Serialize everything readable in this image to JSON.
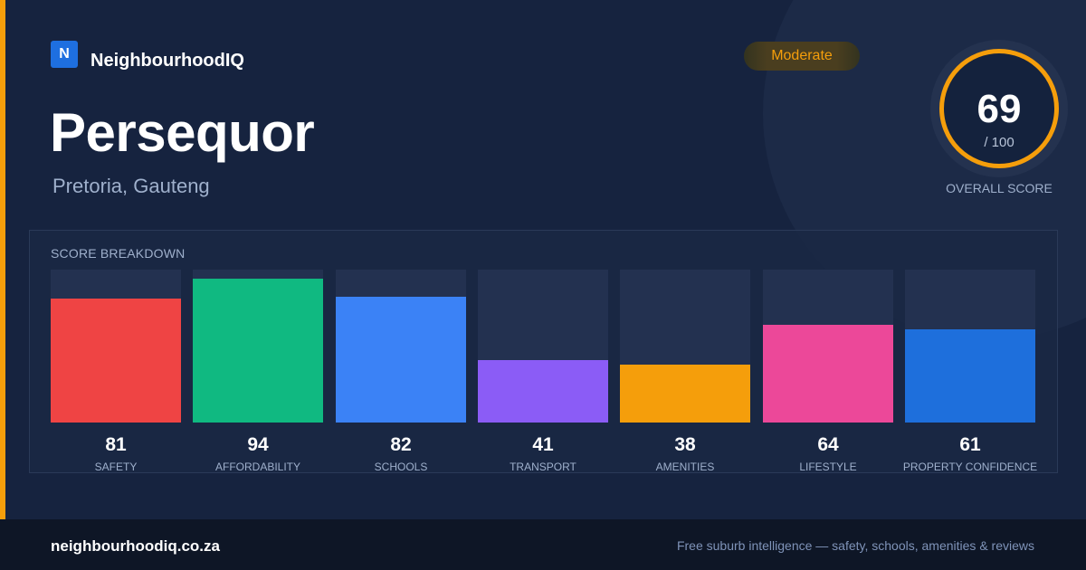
{
  "brand": {
    "logo_letter": "N",
    "name": "NeighbourhoodIQ"
  },
  "suburb": {
    "name": "Persequor",
    "location": "Pretoria, Gauteng"
  },
  "rating_badge": {
    "label": "Moderate"
  },
  "overall": {
    "score": "69",
    "max": "/ 100",
    "caption": "OVERALL SCORE",
    "ring_color": "#f59e0b"
  },
  "breakdown": {
    "title": "SCORE BREAKDOWN",
    "max_score": 100,
    "categories": [
      {
        "label": "SAFETY",
        "value": 81,
        "color": "#ef4444"
      },
      {
        "label": "AFFORDABILITY",
        "value": 94,
        "color": "#10b981"
      },
      {
        "label": "SCHOOLS",
        "value": 82,
        "color": "#3b82f6"
      },
      {
        "label": "TRANSPORT",
        "value": 41,
        "color": "#8b5cf6"
      },
      {
        "label": "AMENITIES",
        "value": 38,
        "color": "#f59e0b"
      },
      {
        "label": "LIFESTYLE",
        "value": 64,
        "color": "#ec4899"
      },
      {
        "label": "PROPERTY CONFIDENCE",
        "value": 61,
        "color": "#1e6fdc"
      }
    ]
  },
  "footer": {
    "domain": "neighbourhoodiq.co.za",
    "tagline": "Free suburb intelligence — safety, schools, amenities & reviews"
  },
  "colors": {
    "accent": "#f59e0b",
    "brand_blue": "#1e6fe0",
    "background": "#16233f"
  }
}
